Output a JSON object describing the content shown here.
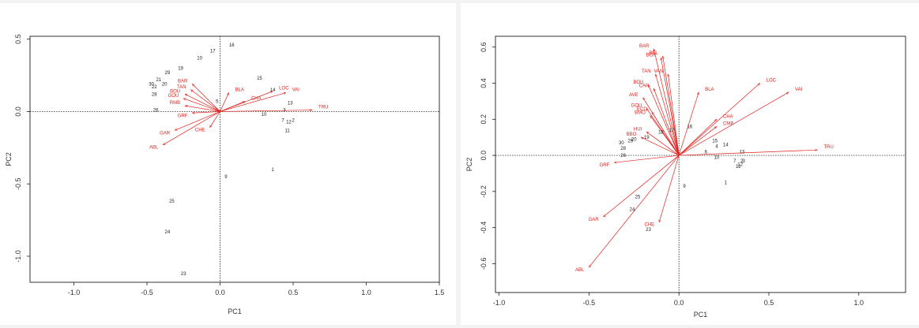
{
  "chart_data": [
    {
      "type": "scatter",
      "xlabel": "PC1",
      "ylabel": "PC2",
      "xlim": [
        -1.3,
        1.5
      ],
      "ylim": [
        -1.18,
        0.52
      ],
      "xticks": [
        "-1.0",
        "-0.5",
        "0.0",
        "0.5",
        "1.0",
        "1.5"
      ],
      "xtick_values": [
        -1.0,
        -0.5,
        0.0,
        0.5,
        1.0,
        1.5
      ],
      "yticks": [
        "-1.0",
        "-0.5",
        "0.0",
        "0.5"
      ],
      "ytick_values": [
        -1.0,
        -0.5,
        0.0,
        0.5
      ],
      "grid": false,
      "reference_lines": [
        0,
        0
      ],
      "observations": [
        {
          "label": "16",
          "x": 0.08,
          "y": 0.46
        },
        {
          "label": "17",
          "x": -0.05,
          "y": 0.42
        },
        {
          "label": "10",
          "x": -0.14,
          "y": 0.37
        },
        {
          "label": "19",
          "x": -0.27,
          "y": 0.3
        },
        {
          "label": "29",
          "x": -0.36,
          "y": 0.27
        },
        {
          "label": "21",
          "x": -0.42,
          "y": 0.22
        },
        {
          "label": "30",
          "x": -0.47,
          "y": 0.19
        },
        {
          "label": "20",
          "x": -0.38,
          "y": 0.19
        },
        {
          "label": "22",
          "x": -0.45,
          "y": 0.17
        },
        {
          "label": "28",
          "x": -0.45,
          "y": 0.12
        },
        {
          "label": "26",
          "x": -0.44,
          "y": 0.01
        },
        {
          "label": "15",
          "x": 0.27,
          "y": 0.23
        },
        {
          "label": "14",
          "x": 0.36,
          "y": 0.15
        },
        {
          "label": "13",
          "x": 0.48,
          "y": 0.06
        },
        {
          "label": "10",
          "x": 0.3,
          "y": -0.02
        },
        {
          "label": "7",
          "x": 0.43,
          "y": -0.06
        },
        {
          "label": "12",
          "x": 0.47,
          "y": -0.07
        },
        {
          "label": "2",
          "x": 0.5,
          "y": -0.06
        },
        {
          "label": "11",
          "x": 0.46,
          "y": -0.13
        },
        {
          "label": "3",
          "x": 0.44,
          "y": 0.01
        },
        {
          "label": "5",
          "x": -0.02,
          "y": 0.07
        },
        {
          "label": "1",
          "x": 0.36,
          "y": -0.4
        },
        {
          "label": "9",
          "x": 0.04,
          "y": -0.45
        },
        {
          "label": "25",
          "x": -0.33,
          "y": -0.62
        },
        {
          "label": "24",
          "x": -0.36,
          "y": -0.83
        },
        {
          "label": "23",
          "x": -0.25,
          "y": -1.12
        }
      ],
      "variables": [
        {
          "label": "BAR",
          "x": -0.19,
          "y": 0.19
        },
        {
          "label": "BLA",
          "x": 0.06,
          "y": 0.13
        },
        {
          "label": "VAI",
          "x": 0.45,
          "y": 0.13
        },
        {
          "label": "LOC",
          "x": 0.36,
          "y": 0.14
        },
        {
          "label": "CHA",
          "x": 0.17,
          "y": 0.07
        },
        {
          "label": "TRU",
          "x": 0.63,
          "y": 0.01
        },
        {
          "label": "GRF",
          "x": -0.19,
          "y": -0.01
        },
        {
          "label": "GAR",
          "x": -0.31,
          "y": -0.13
        },
        {
          "label": "ABL",
          "x": -0.39,
          "y": -0.23
        },
        {
          "label": "CHE",
          "x": -0.07,
          "y": -0.11
        },
        {
          "label": "BOU",
          "x": -0.24,
          "y": 0.12
        },
        {
          "label": "TAN",
          "x": -0.2,
          "y": 0.15
        },
        {
          "label": "GOU",
          "x": -0.25,
          "y": 0.09
        },
        {
          "label": "RMB",
          "x": -0.24,
          "y": 0.04
        }
      ]
    },
    {
      "type": "scatter",
      "xlabel": "PC1",
      "ylabel": "PC2",
      "xlim": [
        -1.02,
        1.26
      ],
      "ylim": [
        -0.76,
        0.66
      ],
      "xticks": [
        "-1.0",
        "-0.5",
        "0.0",
        "0.5",
        "1.0"
      ],
      "xtick_values": [
        -1.0,
        -0.5,
        0.0,
        0.5,
        1.0
      ],
      "yticks": [
        "-0.6",
        "-0.4",
        "-0.2",
        "0.0",
        "0.2",
        "0.4",
        "0.6"
      ],
      "ytick_values": [
        -0.6,
        -0.4,
        -0.2,
        0.0,
        0.2,
        0.4,
        0.6
      ],
      "grid": false,
      "reference_lines": [
        0,
        0
      ],
      "observations": [
        {
          "label": "16",
          "x": 0.06,
          "y": 0.16
        },
        {
          "label": "17",
          "x": -0.04,
          "y": 0.14
        },
        {
          "label": "18",
          "x": -0.1,
          "y": 0.13
        },
        {
          "label": "19",
          "x": -0.18,
          "y": 0.1
        },
        {
          "label": "20",
          "x": -0.25,
          "y": 0.09
        },
        {
          "label": "29",
          "x": -0.27,
          "y": 0.08
        },
        {
          "label": "30",
          "x": -0.32,
          "y": 0.07
        },
        {
          "label": "28",
          "x": -0.31,
          "y": 0.04
        },
        {
          "label": "26",
          "x": -0.31,
          "y": 0.0
        },
        {
          "label": "15",
          "x": 0.2,
          "y": 0.08
        },
        {
          "label": "14",
          "x": 0.26,
          "y": 0.06
        },
        {
          "label": "4",
          "x": 0.21,
          "y": 0.05
        },
        {
          "label": "6",
          "x": 0.15,
          "y": 0.02
        },
        {
          "label": "13",
          "x": 0.35,
          "y": 0.02
        },
        {
          "label": "10",
          "x": 0.21,
          "y": -0.01
        },
        {
          "label": "7",
          "x": 0.31,
          "y": -0.03
        },
        {
          "label": "3",
          "x": 0.36,
          "y": -0.03
        },
        {
          "label": "11",
          "x": 0.33,
          "y": -0.06
        },
        {
          "label": "12",
          "x": 0.34,
          "y": -0.05
        },
        {
          "label": "2",
          "x": 0.35,
          "y": -0.03
        },
        {
          "label": "9",
          "x": 0.03,
          "y": -0.17
        },
        {
          "label": "1",
          "x": 0.26,
          "y": -0.15
        },
        {
          "label": "25",
          "x": -0.23,
          "y": -0.23
        },
        {
          "label": "24",
          "x": -0.26,
          "y": -0.3
        },
        {
          "label": "23",
          "x": -0.17,
          "y": -0.41
        }
      ],
      "variables": [
        {
          "label": "BAR",
          "x": -0.14,
          "y": 0.59
        },
        {
          "label": "BEL",
          "x": -0.09,
          "y": 0.55
        },
        {
          "label": "BOX",
          "x": -0.1,
          "y": 0.54
        },
        {
          "label": "TAN",
          "x": -0.13,
          "y": 0.45
        },
        {
          "label": "VAN",
          "x": -0.06,
          "y": 0.45
        },
        {
          "label": "BOU",
          "x": -0.17,
          "y": 0.39
        },
        {
          "label": "CAR",
          "x": -0.14,
          "y": 0.37
        },
        {
          "label": "AVE",
          "x": -0.2,
          "y": 0.32
        },
        {
          "label": "GOU",
          "x": -0.18,
          "y": 0.26
        },
        {
          "label": "BMO",
          "x": -0.16,
          "y": 0.22
        },
        {
          "label": "ECO",
          "x": -0.15,
          "y": 0.24
        },
        {
          "label": "HUI",
          "x": -0.18,
          "y": 0.13
        },
        {
          "label": "BBO",
          "x": -0.21,
          "y": 0.1
        },
        {
          "label": "BLA",
          "x": 0.11,
          "y": 0.35
        },
        {
          "label": "LOC",
          "x": 0.45,
          "y": 0.4
        },
        {
          "label": "VAI",
          "x": 0.61,
          "y": 0.35
        },
        {
          "label": "CHA",
          "x": 0.21,
          "y": 0.2
        },
        {
          "label": "CMB",
          "x": 0.21,
          "y": 0.16
        },
        {
          "label": "TRU",
          "x": 0.77,
          "y": 0.03
        },
        {
          "label": "GRF",
          "x": -0.36,
          "y": -0.04
        },
        {
          "label": "GAR",
          "x": -0.42,
          "y": -0.34
        },
        {
          "label": "ABL",
          "x": -0.5,
          "y": -0.62
        },
        {
          "label": "CHE",
          "x": -0.11,
          "y": -0.37
        }
      ]
    }
  ]
}
